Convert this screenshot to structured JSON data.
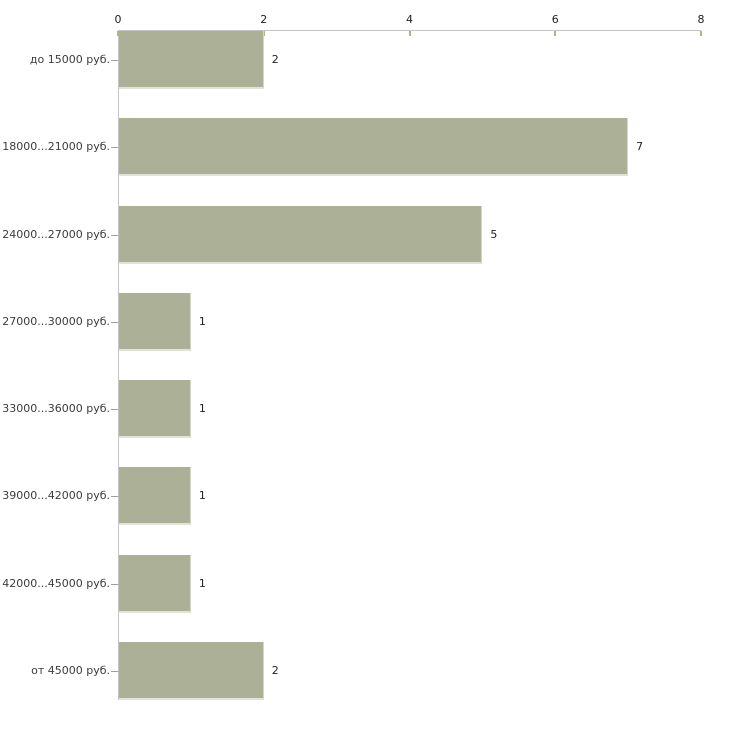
{
  "chart_data": {
    "type": "bar",
    "orientation": "horizontal",
    "title": "",
    "xlabel": "",
    "ylabel": "",
    "categories": [
      "до 15000 руб.",
      "18000...21000 руб.",
      "24000...27000 руб.",
      "27000...30000 руб.",
      "33000...36000 руб.",
      "39000...42000 руб.",
      "42000...45000 руб.",
      "от 45000 руб."
    ],
    "values": [
      2,
      7,
      5,
      1,
      1,
      1,
      1,
      2
    ],
    "x_ticks": [
      0,
      2,
      4,
      6,
      8
    ],
    "xlim": [
      0,
      8
    ],
    "grid": false,
    "legend": "none",
    "axis_position": "top",
    "colors": {
      "bar_fill": "#abb096",
      "bar_edge": "#e2e3d8",
      "axis_line": "#c5c5c5",
      "x_tick_mark": "#b1b285",
      "y_tick_mark": "#a0a0a0",
      "category_label": "#3c3c3c",
      "value_label": "#222222",
      "background": "#ffffff"
    }
  }
}
